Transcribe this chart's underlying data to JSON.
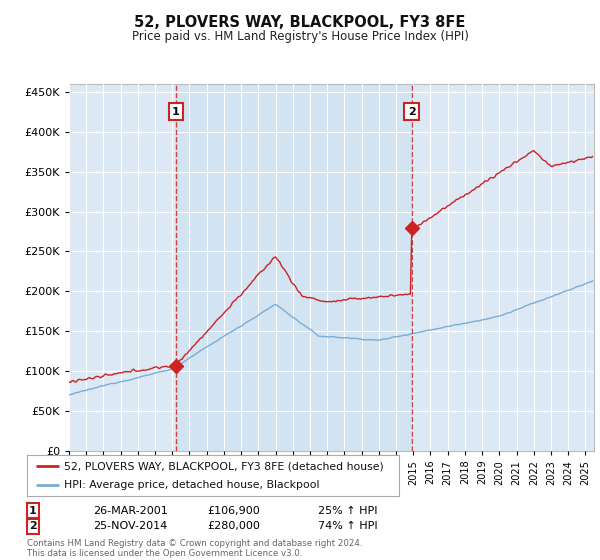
{
  "title": "52, PLOVERS WAY, BLACKPOOL, FY3 8FE",
  "subtitle": "Price paid vs. HM Land Registry's House Price Index (HPI)",
  "hpi_label": "HPI: Average price, detached house, Blackpool",
  "property_label": "52, PLOVERS WAY, BLACKPOOL, FY3 8FE (detached house)",
  "sale1_date": "26-MAR-2001",
  "sale1_price": 106900,
  "sale1_hpi": "25% ↑ HPI",
  "sale1_year": 2001.2,
  "sale2_date": "25-NOV-2014",
  "sale2_price": 280000,
  "sale2_hpi": "74% ↑ HPI",
  "sale2_year": 2014.9,
  "ylim": [
    0,
    460000
  ],
  "yticks": [
    0,
    50000,
    100000,
    150000,
    200000,
    250000,
    300000,
    350000,
    400000,
    450000
  ],
  "xlim_start": 1995,
  "xlim_end": 2025.5,
  "plot_bg": "#dce9f5",
  "highlight_bg": "#cce0f0",
  "grid_color": "#ffffff",
  "red_color": "#cc2222",
  "blue_color": "#7aadd4",
  "footnote": "Contains HM Land Registry data © Crown copyright and database right 2024.\nThis data is licensed under the Open Government Licence v3.0."
}
